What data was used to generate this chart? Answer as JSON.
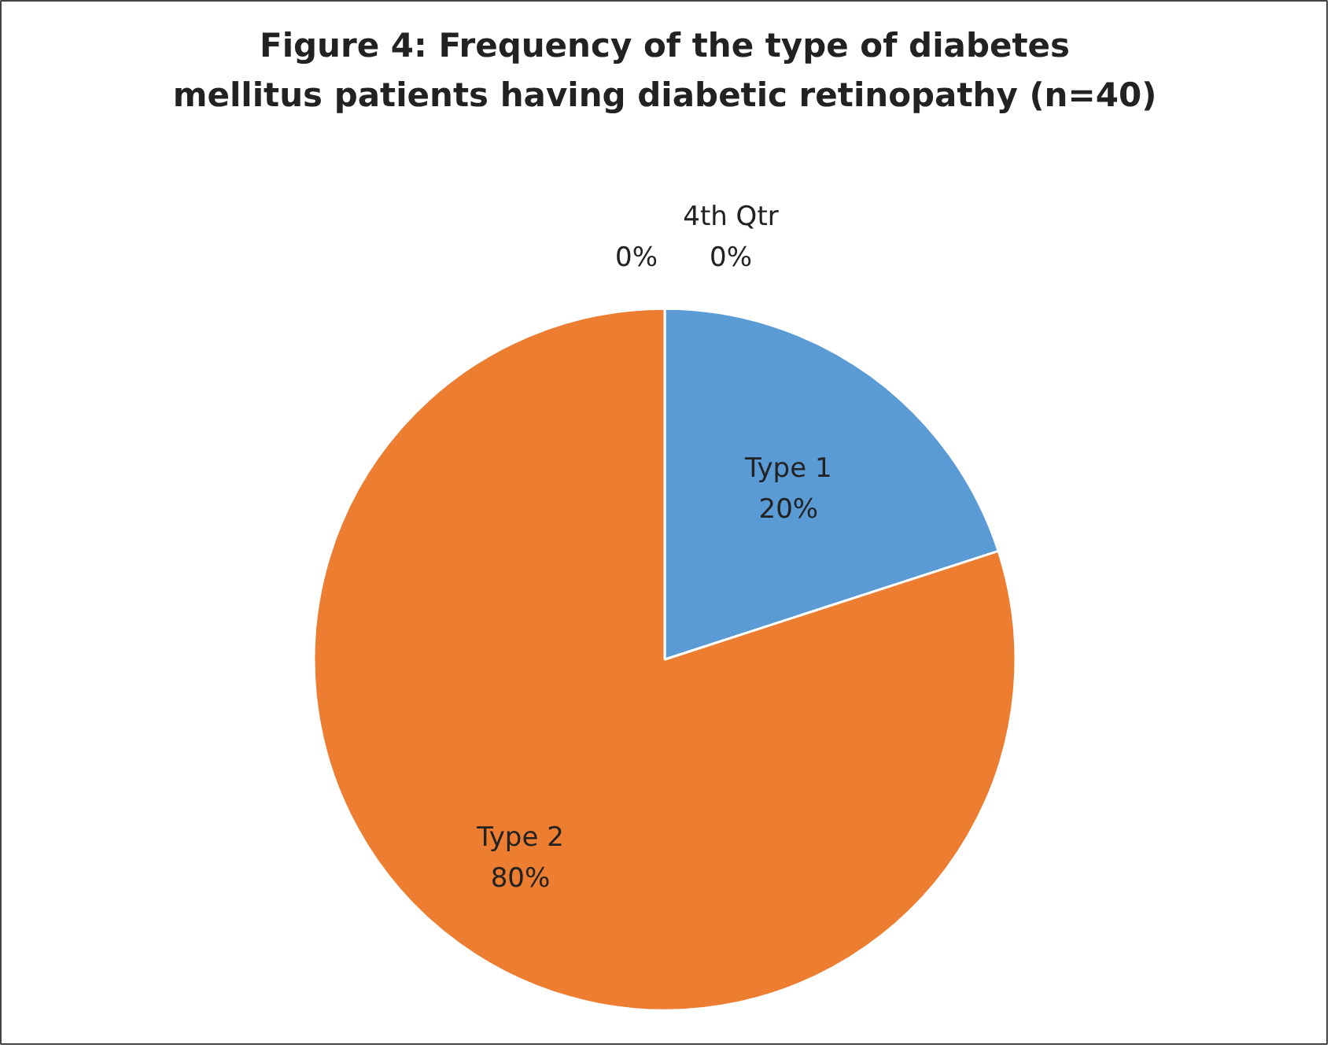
{
  "chart_data": {
    "type": "pie",
    "title": "Figure 4: Frequency of the type of diabetes mellitus patients having diabetic retinopathy (n=40)",
    "categories": [
      "Type 1",
      "Type 2",
      null,
      "4th Qtr"
    ],
    "values": [
      20,
      80,
      0,
      0
    ],
    "colors": [
      "#5b9bd5",
      "#ed7d31",
      "#a5a5a5",
      "#ffc000"
    ],
    "value_labels": [
      "20%",
      "80%",
      "0%",
      "0%"
    ]
  }
}
